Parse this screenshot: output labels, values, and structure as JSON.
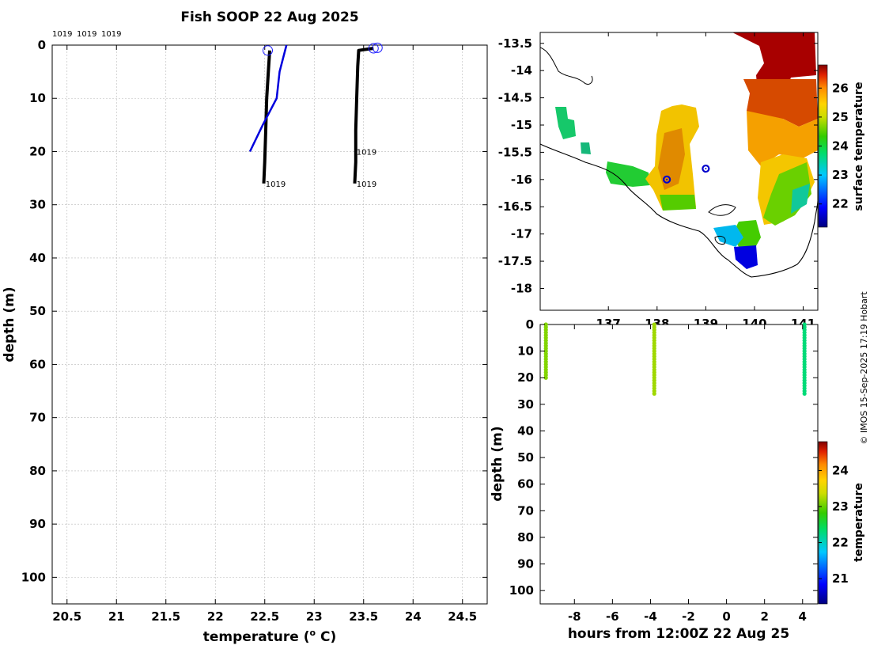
{
  "figure": {
    "title": "Fish SOOP 22 Aug 2025",
    "credit": "© IMOS 15-Sep-2025 17:19 Hobart",
    "top_labels": [
      "1019",
      "1019",
      "1019"
    ]
  },
  "colors": {
    "profile": "#000000",
    "climatology": "#0000dd",
    "marker": "#1a1aff"
  },
  "chart_data": [
    {
      "id": "profiles",
      "type": "line",
      "xlabel": "temperature (o C)",
      "xlabel_base": "temperature (",
      "xlabel_sup": "o",
      "xlabel_tail": " C)",
      "ylabel": "depth (m)",
      "xlim": [
        20.35,
        24.75
      ],
      "ylim": [
        0,
        105
      ],
      "y_inverted": true,
      "xticks": [
        20.5,
        21,
        21.5,
        22,
        22.5,
        23,
        23.5,
        24,
        24.5
      ],
      "yticks": [
        0,
        10,
        20,
        30,
        40,
        50,
        60,
        70,
        80,
        90,
        100
      ],
      "series": [
        {
          "name": "profile A",
          "color": "#000000",
          "points": [
            [
              22.55,
              1
            ],
            [
              22.54,
              4
            ],
            [
              22.52,
              10
            ],
            [
              22.51,
              16
            ],
            [
              22.5,
              22
            ],
            [
              22.49,
              26
            ]
          ]
        },
        {
          "name": "profile B",
          "color": "#000000",
          "points": [
            [
              23.6,
              0.6
            ],
            [
              23.45,
              1
            ],
            [
              23.44,
              4
            ],
            [
              23.43,
              10
            ],
            [
              23.42,
              16
            ],
            [
              23.42,
              22
            ],
            [
              23.41,
              26
            ]
          ]
        },
        {
          "name": "climatology",
          "color": "#0000dd",
          "points": [
            [
              22.72,
              0
            ],
            [
              22.65,
              5
            ],
            [
              22.62,
              10
            ],
            [
              22.48,
              15
            ],
            [
              22.35,
              20
            ]
          ]
        }
      ],
      "surface_markers": [
        [
          22.53,
          1
        ],
        [
          23.6,
          0.6
        ],
        [
          23.64,
          0.5
        ]
      ],
      "annotations": [
        {
          "text": "1019",
          "x": 22.5,
          "y": 26
        },
        {
          "text": "1019",
          "x": 23.42,
          "y": 20
        },
        {
          "text": "1019",
          "x": 23.42,
          "y": 26
        }
      ]
    },
    {
      "id": "sst_map",
      "type": "heatmap",
      "colorbar_label": "surface temperature",
      "colorbar_range": [
        21.2,
        26.8
      ],
      "colorbar_ticks": [
        22,
        23,
        24,
        25,
        26
      ],
      "lon_range": [
        135.6,
        141.3
      ],
      "lat_range": [
        -18.4,
        -13.3
      ],
      "xticks": [
        137,
        138,
        139,
        140,
        141
      ],
      "yticks": [
        -13.5,
        -14,
        -14.5,
        -15,
        -15.5,
        -16,
        -16.5,
        -17,
        -17.5,
        -18
      ],
      "stations": [
        [
          138.2,
          -16.0
        ],
        [
          139.0,
          -15.8
        ]
      ]
    },
    {
      "id": "time_depth",
      "type": "scatter",
      "xlabel": "hours from 12:00Z 22 Aug 25",
      "ylabel": "depth (m)",
      "xlim": [
        -9.8,
        4.8
      ],
      "ylim": [
        0,
        105
      ],
      "y_inverted": true,
      "xticks": [
        -8,
        -6,
        -4,
        -2,
        0,
        2,
        4
      ],
      "yticks": [
        0,
        10,
        20,
        30,
        40,
        50,
        60,
        70,
        80,
        90,
        100
      ],
      "colorbar_label": "temperature",
      "colorbar_range": [
        20.3,
        24.8
      ],
      "colorbar_ticks": [
        21,
        22,
        23,
        24
      ],
      "casts": [
        {
          "hour": -9.5,
          "max_depth": 20,
          "temperature": 23.1
        },
        {
          "hour": -3.8,
          "max_depth": 26,
          "temperature": 23.2
        },
        {
          "hour": 4.1,
          "max_depth": 26,
          "temperature": 22.3
        }
      ]
    }
  ]
}
